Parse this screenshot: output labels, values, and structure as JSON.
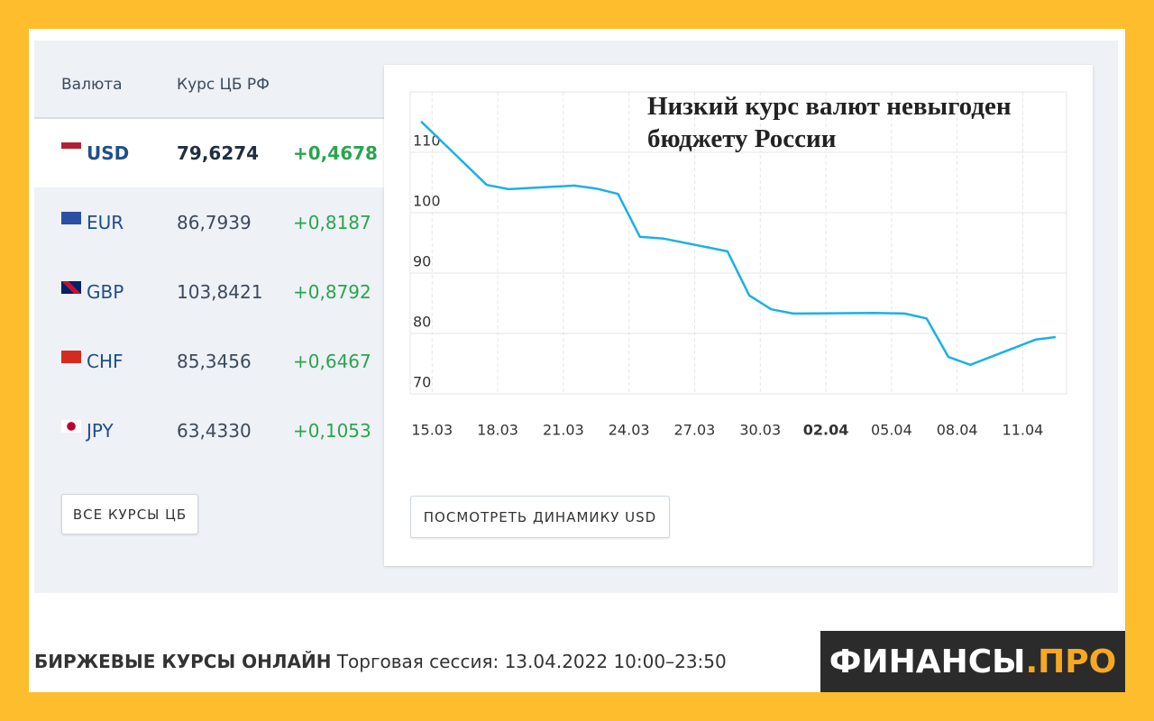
{
  "table": {
    "header": [
      "Валюта",
      "Курс ЦБ РФ"
    ],
    "rows": [
      [
        "USD",
        "79,6274",
        "+0,4678"
      ],
      [
        "EUR",
        "86,7939",
        "+0,8187"
      ],
      [
        "GBP",
        "103,8421",
        "+0,8792"
      ],
      [
        "CHF",
        "85,3456",
        "+0,6467"
      ],
      [
        "JPY",
        "63,4330",
        "+0,1053"
      ]
    ]
  },
  "buttons": {
    "all_rates": "ВСЕ КУРСЫ ЦБ",
    "dynamics": "ПОСМОТРЕТЬ ДИНАМИКУ USD"
  },
  "footer": {
    "title": "БИРЖЕВЫЕ КУРСЫ ОНЛАЙН",
    "session": "Торговая сессия: 13.04.2022 10:00–23:50"
  },
  "logo": {
    "name": "ФИНАНСЫ",
    "suffix": ".ПРО"
  },
  "chart_data": {
    "type": "line",
    "title": "Низкий курс валют невыгоден бюджету России",
    "x": [
      -0.5,
      2.5,
      3.5,
      5,
      6.5,
      7.5,
      8.5,
      9.5,
      10.6,
      13.5,
      14.5,
      15.5,
      16.5,
      20.2,
      21.6,
      22.6,
      23.6,
      24.6,
      27.6,
      28.5
    ],
    "series": [
      {
        "name": "USD",
        "color": "#1ab0e8",
        "values": [
          115.1,
          104.6,
          103.9,
          104.2,
          104.5,
          104.0,
          103.1,
          96.0,
          95.7,
          93.6,
          86.3,
          84.0,
          83.3,
          83.4,
          83.3,
          82.5,
          76.1,
          74.8,
          79.0,
          79.4
        ]
      }
    ],
    "xlim": [
      -1,
      29
    ],
    "xticks": [
      {
        "value": 0,
        "label": "15.03"
      },
      {
        "value": 3,
        "label": "18.03"
      },
      {
        "value": 6,
        "label": "21.03"
      },
      {
        "value": 9,
        "label": "24.03"
      },
      {
        "value": 12,
        "label": "27.03"
      },
      {
        "value": 15,
        "label": "30.03"
      },
      {
        "value": 18,
        "label": "02.04"
      },
      {
        "value": 21,
        "label": "05.04"
      },
      {
        "value": 24,
        "label": "08.04"
      },
      {
        "value": 27,
        "label": "11.04"
      }
    ],
    "ylim": [
      70,
      120
    ],
    "yticks": [
      70,
      80,
      90,
      100,
      110
    ],
    "grid": true
  }
}
